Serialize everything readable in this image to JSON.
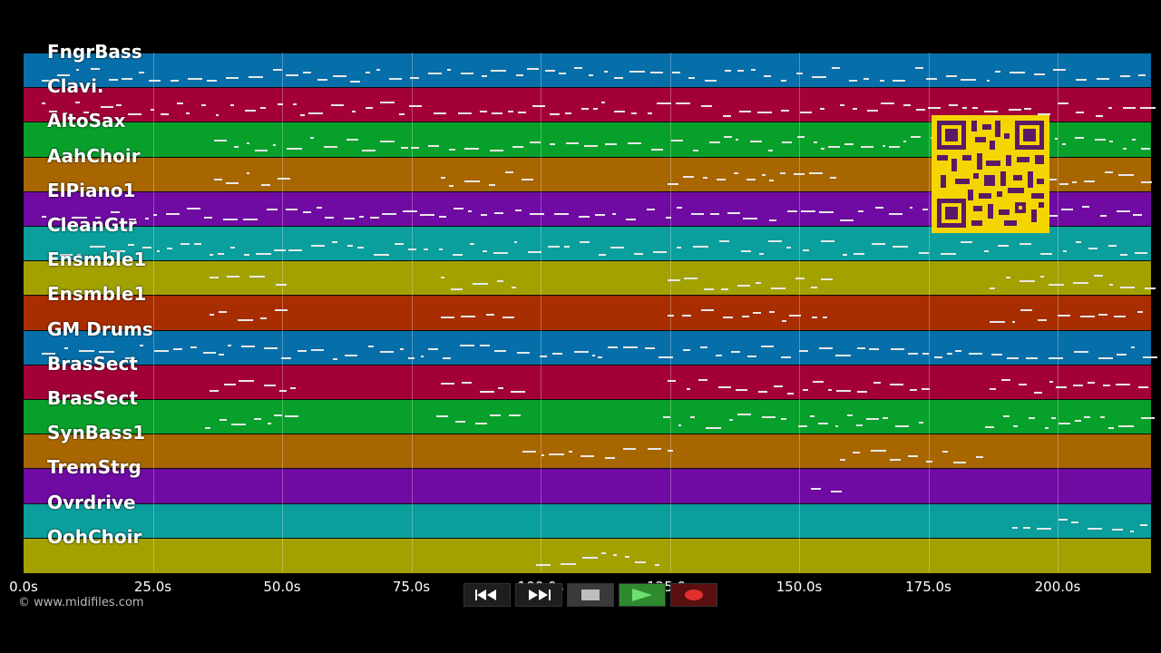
{
  "tracks": [
    {
      "name": "FngrBass",
      "color": "#066ea8"
    },
    {
      "name": "Clavi.",
      "color": "#a3003a"
    },
    {
      "name": "AltoSax",
      "color": "#07a02a"
    },
    {
      "name": "AahChoir",
      "color": "#a86600"
    },
    {
      "name": "ElPiano1",
      "color": "#6f0aa3"
    },
    {
      "name": "CleanGtr",
      "color": "#0a9e9c"
    },
    {
      "name": "Ensmble1",
      "color": "#a2a100"
    },
    {
      "name": "Ensmble1",
      "color": "#a82d00"
    },
    {
      "name": "GM Drums",
      "color": "#066ea8"
    },
    {
      "name": "BrasSect",
      "color": "#a3003a"
    },
    {
      "name": "BrasSect",
      "color": "#07a02a"
    },
    {
      "name": "SynBass1",
      "color": "#a86600"
    },
    {
      "name": "TremStrg",
      "color": "#6f0aa3"
    },
    {
      "name": "Ovrdrive",
      "color": "#0a9e9c"
    },
    {
      "name": "OohChoir",
      "color": "#a2a100"
    }
  ],
  "timeline": {
    "tick_labels": [
      "0.0s",
      "25.0s",
      "50.0s",
      "75.0s",
      "100.0s",
      "125.0s",
      "150.0s",
      "175.0s",
      "200.0s"
    ]
  },
  "copyright": "© www.midifiles.com",
  "transport": {
    "rewind_icon": "rewind-icon",
    "forward_icon": "fast-forward-icon",
    "stop_icon": "stop-icon",
    "play_icon": "play-icon",
    "record_icon": "record-icon"
  },
  "qr_code": {
    "color": "#f5d500"
  }
}
